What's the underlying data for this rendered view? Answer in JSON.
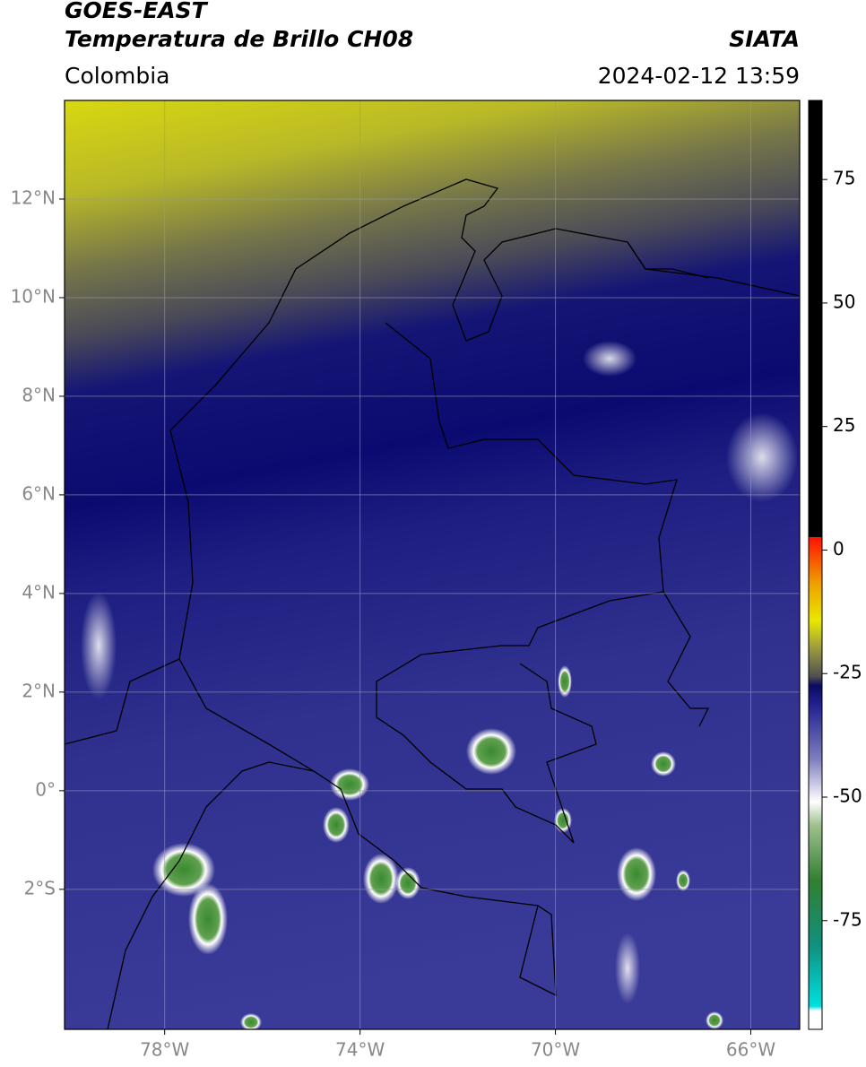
{
  "header": {
    "title": "GOES-EAST",
    "subtitle": "Temperatura de Brillo CH08",
    "region": "Colombia",
    "source": "SIATA",
    "datetime": "2024-02-12 13:59"
  },
  "map": {
    "lat_lim": [
      -4.84,
      14
    ],
    "lon_lim": [
      -80.05,
      -65
    ],
    "lat_ticks": [
      {
        "value": 12,
        "label": "12°N"
      },
      {
        "value": 10,
        "label": "10°N"
      },
      {
        "value": 8,
        "label": "8°N"
      },
      {
        "value": 6,
        "label": "6°N"
      },
      {
        "value": 4,
        "label": "4°N"
      },
      {
        "value": 2,
        "label": "2°N"
      },
      {
        "value": 0,
        "label": "0°"
      },
      {
        "value": -2,
        "label": "2°S"
      }
    ],
    "lon_ticks": [
      {
        "value": -78,
        "label": "78°W"
      },
      {
        "value": -74,
        "label": "74°W"
      },
      {
        "value": -70,
        "label": "70°W"
      },
      {
        "value": -66,
        "label": "66°W"
      }
    ]
  },
  "colorbar": {
    "lim": [
      -97,
      91
    ],
    "ticks": [
      75,
      50,
      25,
      0,
      -25,
      -50,
      -75
    ]
  }
}
